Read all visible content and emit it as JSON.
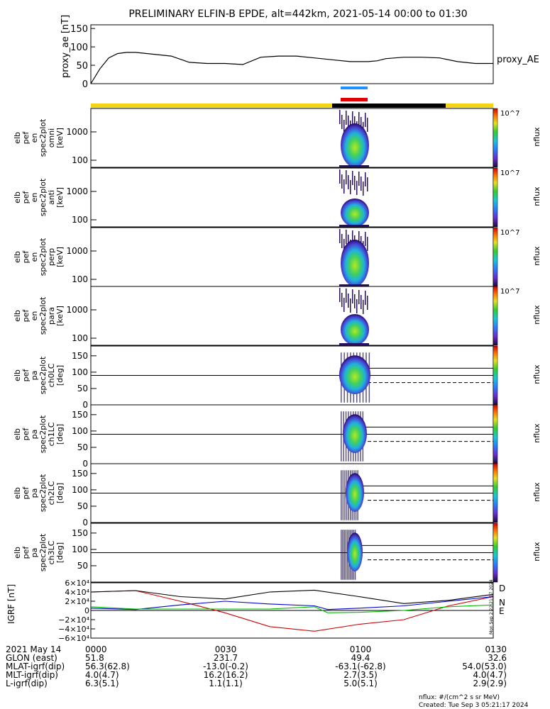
{
  "title": "PRELIMINARY ELFIN-B EPDE, alt=442km, 2021-05-14 00:00 to 01:30",
  "proxy": {
    "ylabel": "proxy_ae [nT]",
    "legend": "proxy_AE",
    "yticks": [
      "150",
      "100",
      "50",
      "0"
    ],
    "ylim": [
      0,
      160
    ]
  },
  "spec_panels": [
    {
      "ylabel": [
        "elb",
        "pef",
        "en",
        "spec2plot",
        "omni",
        "[keV]"
      ],
      "yticks": [
        "1000",
        "100"
      ],
      "cbar_top": "10^7",
      "cbar_label": "nflux"
    },
    {
      "ylabel": [
        "elb",
        "pef",
        "en",
        "spec2plot",
        "anti",
        "[keV]"
      ],
      "yticks": [
        "1000",
        "100"
      ],
      "cbar_top": "10^7",
      "cbar_label": "nflux"
    },
    {
      "ylabel": [
        "elb",
        "pef",
        "en",
        "spec2plot",
        "perp",
        "[keV]"
      ],
      "yticks": [
        "1000",
        "100"
      ],
      "cbar_top": "10^7",
      "cbar_label": "nflux"
    },
    {
      "ylabel": [
        "elb",
        "pef",
        "en",
        "spec2plot",
        "para",
        "[keV]"
      ],
      "yticks": [
        "1000",
        "100"
      ],
      "cbar_top": "10^7",
      "cbar_label": "nflux"
    }
  ],
  "pa_panels": [
    {
      "ylabel": [
        "elb",
        "pef",
        "pa",
        "spec2plot",
        "ch0LC",
        "[deg]"
      ],
      "yticks": [
        "150",
        "100",
        "50",
        "0"
      ],
      "cbar_label": "nflux"
    },
    {
      "ylabel": [
        "elb",
        "pef",
        "pa",
        "spec2plot",
        "ch1LC",
        "[deg]"
      ],
      "yticks": [
        "150",
        "100",
        "50",
        "0"
      ],
      "cbar_label": "nflux"
    },
    {
      "ylabel": [
        "elb",
        "pef",
        "pa",
        "spec2plot",
        "ch2LC",
        "[deg]"
      ],
      "yticks": [
        "150",
        "100",
        "50",
        "0"
      ],
      "cbar_label": "nflux"
    },
    {
      "ylabel": [
        "elb",
        "pef",
        "pa",
        "spec2plot",
        "ch3LC",
        "[deg]"
      ],
      "yticks": [
        "150",
        "100",
        "50"
      ],
      "cbar_label": "nflux"
    }
  ],
  "igrf": {
    "ylabel": "IGRF [nT]",
    "yticks": [
      "6×10⁴",
      "4×10⁴",
      "2×10⁴",
      "0",
      "−2×10⁴",
      "−4×10⁴",
      "−6×10⁴"
    ],
    "ylim": [
      -60000,
      60000
    ],
    "legend": [
      "D",
      "N",
      "E"
    ]
  },
  "axis": {
    "rows": [
      {
        "label": "2021 May 14",
        "values": [
          "0000",
          "0030",
          "0100",
          "0130"
        ]
      },
      {
        "label": "GLON (east)",
        "values": [
          "51.8",
          "231.7",
          "49.4",
          "32.6"
        ]
      },
      {
        "label": "MLAT-igrf(dip)",
        "values": [
          "56.3(62.8)",
          "-13.0(-0.2)",
          "-63.1(-62.8)",
          "54.0(53.0)"
        ]
      },
      {
        "label": "MLT-igrf(dip)",
        "values": [
          "4.0(4.7)",
          "16.2(16.2)",
          "2.7(3.5)",
          "4.0(4.7)"
        ]
      },
      {
        "label": "L-igrf(dip)",
        "values": [
          "6.3(5.1)",
          "1.1(1.1)",
          "5.0(5.1)",
          "2.9(2.9)"
        ]
      }
    ]
  },
  "footer": {
    "units": "nflux: #/(cm^2 s sr MeV)",
    "created": "Created: Tue Sep  3 05:21:17 2024",
    "side_stamp": "Mon Sep  2 22:21:17 2024"
  },
  "colors": {
    "sun": "#f5d415",
    "shadow": "#000000",
    "bar_blue": "#1e90ff",
    "bar_red": "#e00000",
    "igrf_D": "#d00000",
    "igrf_N": "#0000d0",
    "igrf_E": "#00c000"
  },
  "chart_data": [
    {
      "type": "line",
      "title": "",
      "ylabel": "proxy_ae [nT]",
      "ylim": [
        0,
        160
      ],
      "series": [
        {
          "name": "proxy_AE",
          "x_min": [
            0,
            2,
            4,
            6,
            8,
            10,
            14,
            18,
            22,
            26,
            30,
            34,
            38,
            42,
            46,
            50,
            54,
            58,
            62,
            64,
            66,
            70,
            74,
            78,
            82,
            86,
            88,
            90
          ],
          "values": [
            0,
            40,
            70,
            82,
            85,
            85,
            80,
            75,
            58,
            55,
            55,
            52,
            72,
            75,
            75,
            70,
            65,
            60,
            60,
            62,
            68,
            72,
            72,
            70,
            60,
            55,
            55,
            55
          ]
        }
      ]
    },
    {
      "type": "line",
      "ylabel": "IGRF [nT]",
      "ylim": [
        -60000,
        60000
      ],
      "series": [
        {
          "name": "D",
          "x_min": [
            0,
            10,
            20,
            30,
            40,
            50,
            60,
            70,
            80,
            90
          ],
          "values": [
            40000,
            43000,
            20000,
            -5000,
            -35000,
            -45000,
            -30000,
            -20000,
            10000,
            30000
          ]
        },
        {
          "name": "N",
          "x_min": [
            0,
            10,
            20,
            30,
            40,
            50,
            53,
            60,
            70,
            80,
            90
          ],
          "values": [
            5000,
            2000,
            12000,
            20000,
            14000,
            10000,
            2000,
            5000,
            10000,
            20000,
            30000
          ]
        },
        {
          "name": "E",
          "x_min": [
            0,
            10,
            20,
            30,
            40,
            50,
            53,
            60,
            70,
            80,
            90
          ],
          "values": [
            8000,
            3000,
            3000,
            3000,
            3000,
            8000,
            -5000,
            -4000,
            0,
            8000,
            12000
          ]
        },
        {
          "name": "",
          "x_min": [
            0,
            10,
            20,
            30,
            40,
            50,
            60,
            70,
            80,
            90
          ],
          "values": [
            40000,
            43000,
            30000,
            25000,
            40000,
            44000,
            30000,
            15000,
            22000,
            35000
          ]
        }
      ]
    }
  ]
}
